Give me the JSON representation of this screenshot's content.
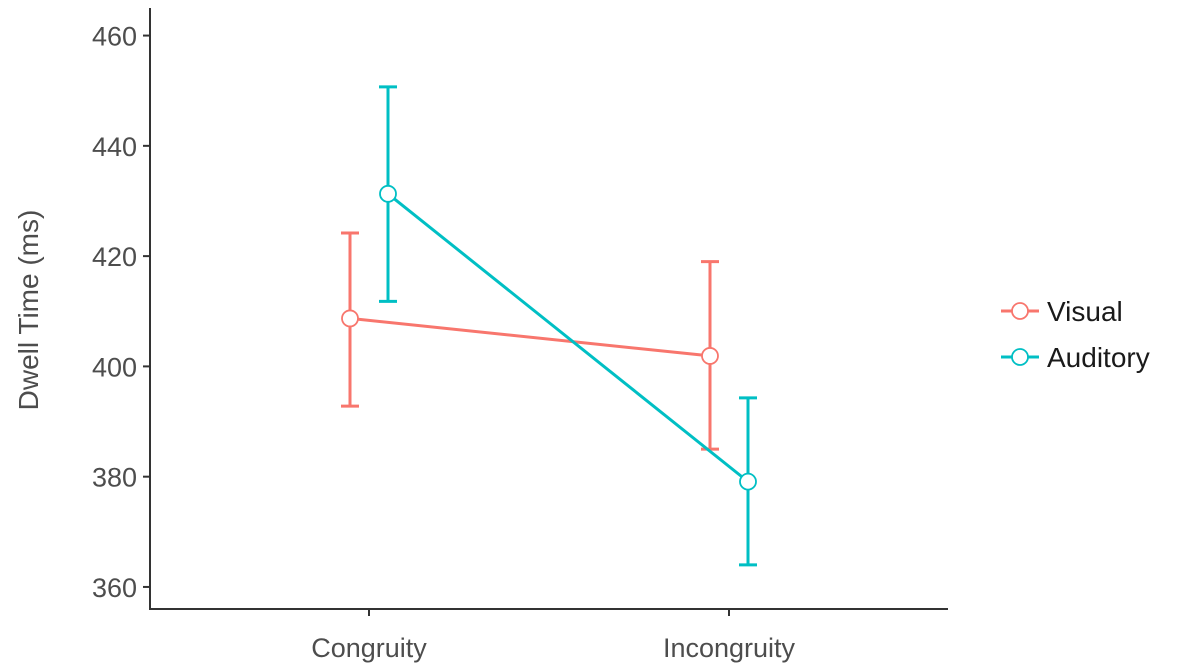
{
  "chart_data": {
    "type": "line",
    "title": "",
    "xlabel": "",
    "ylabel": "Dwell Time (ms)",
    "categories": [
      "Congruity",
      "Incongruity"
    ],
    "ylim": [
      356,
      465
    ],
    "yticks": [
      360,
      380,
      400,
      420,
      440,
      460
    ],
    "grid": false,
    "legend_position": "right",
    "error_bars": true,
    "series": [
      {
        "name": "Visual",
        "color": "#F8766D",
        "values": [
          408.7,
          401.9
        ],
        "error_low": [
          392.8,
          385.0
        ],
        "error_high": [
          424.2,
          419.0
        ]
      },
      {
        "name": "Auditory",
        "color": "#00BFC4",
        "values": [
          431.3,
          379.1
        ],
        "error_low": [
          411.8,
          364.0
        ],
        "error_high": [
          450.7,
          394.3
        ]
      }
    ]
  }
}
